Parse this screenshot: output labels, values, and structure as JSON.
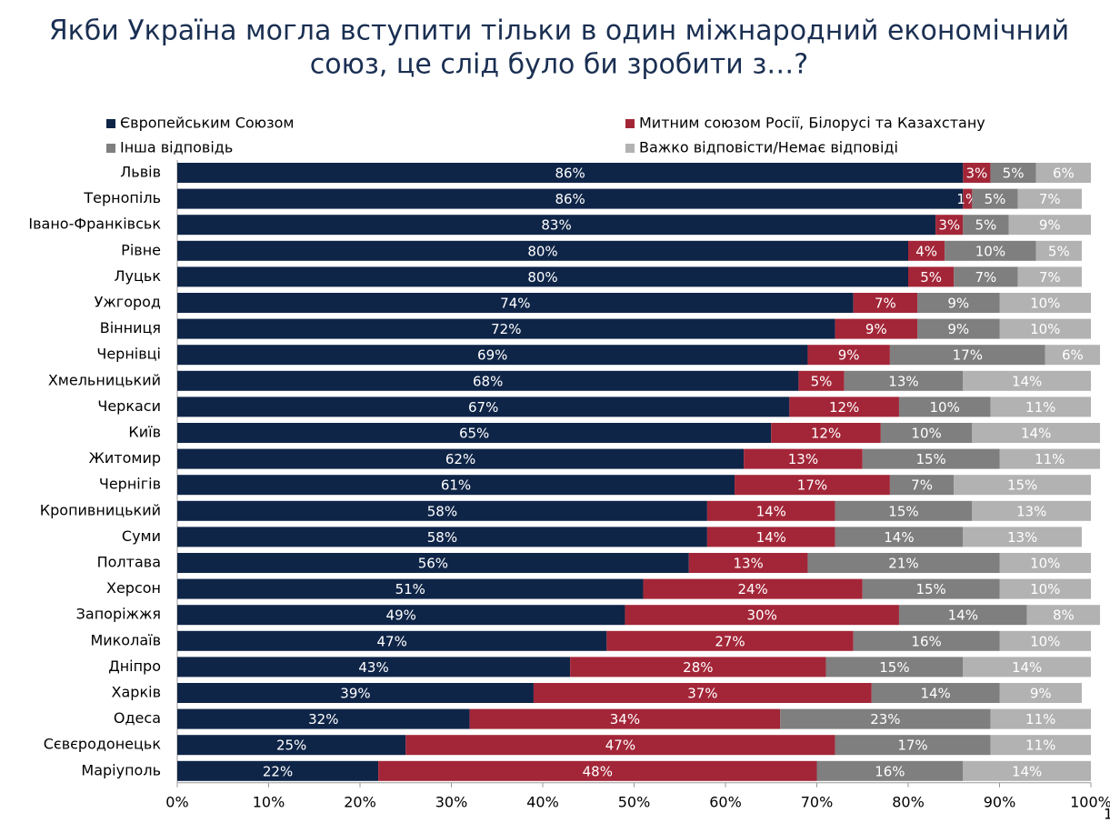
{
  "chart_data": {
    "type": "stacked-bar-horizontal",
    "title": "Якби Україна могла вступити тільки в один міжнародний економічний",
    "subtitle": "союз, це слід було би зробити з…?",
    "page_number": "1",
    "categories": [
      "Львів",
      "Тернопіль",
      "Івано-Франківськ",
      "Рівне",
      "Луцьк",
      "Ужгород",
      "Вінниця",
      "Чернівці",
      "Хмельницький",
      "Черкаси",
      "Київ",
      "Житомир",
      "Чернігів",
      "Кропивницький",
      "Суми",
      "Полтава",
      "Херсон",
      "Запоріжжя",
      "Миколаїв",
      "Дніпро",
      "Харків",
      "Одеса",
      "Сєвєродонецьк",
      "Маріуполь"
    ],
    "series": [
      {
        "name": "Європейським Союзом",
        "color": "#0f2548",
        "values": [
          86,
          86,
          83,
          80,
          80,
          74,
          72,
          69,
          68,
          67,
          65,
          62,
          61,
          58,
          58,
          56,
          51,
          49,
          47,
          43,
          39,
          32,
          25,
          22
        ],
        "value_labels": [
          "86%",
          "86%",
          "83%",
          "80%",
          "80%",
          "74%",
          "72%",
          "69%",
          "68%",
          "67%",
          "65%",
          "62%",
          "61%",
          "58%",
          "58%",
          "56%",
          "51%",
          "49%",
          "47%",
          "43%",
          "39%",
          "32%",
          "25%",
          "22%"
        ]
      },
      {
        "name": "Митним союзом Росії, Білорусі та Казахстану",
        "color": "#a32638",
        "values": [
          3,
          1,
          3,
          4,
          5,
          7,
          9,
          9,
          5,
          12,
          12,
          13,
          17,
          14,
          14,
          13,
          24,
          30,
          27,
          28,
          37,
          34,
          47,
          48
        ],
        "value_labels": [
          "3%",
          "1%",
          "3%",
          "4%",
          "5%",
          "7%",
          "9%",
          "9%",
          "5%",
          "12%",
          "12%",
          "13%",
          "17%",
          "14%",
          "14%",
          "13%",
          "24%",
          "30%",
          "27%",
          "28%",
          "37%",
          "34%",
          "47%",
          "48%"
        ]
      },
      {
        "name": "Інша відповідь",
        "color": "#7f7f7f",
        "values": [
          5,
          5,
          5,
          10,
          7,
          9,
          9,
          17,
          13,
          10,
          10,
          15,
          7,
          15,
          14,
          21,
          15,
          14,
          16,
          15,
          14,
          23,
          17,
          16
        ],
        "value_labels": [
          "5%",
          "5%",
          "5%",
          "10%",
          "7%",
          "9%",
          "9%",
          "17%",
          "13%",
          "10%",
          "10%",
          "15%",
          "7%",
          "15%",
          "14%",
          "21%",
          "15%",
          "14%",
          "16%",
          "15%",
          "14%",
          "23%",
          "17%",
          "16%"
        ]
      },
      {
        "name": "Важко відповісти/Немає відповіді",
        "color": "#b2b2b2",
        "values": [
          6,
          7,
          9,
          5,
          7,
          10,
          10,
          6,
          14,
          11,
          14,
          11,
          15,
          13,
          13,
          10,
          10,
          8,
          10,
          14,
          9,
          11,
          11,
          14
        ],
        "value_labels": [
          "6%",
          "7%",
          "9%",
          "5%",
          "7%",
          "10%",
          "10%",
          "6%",
          "14%",
          "11%",
          "14%",
          "11%",
          "15%",
          "13%",
          "13%",
          "10%",
          "10%",
          "8%",
          "10%",
          "14%",
          "9%",
          "11%",
          "11%",
          "14%"
        ]
      }
    ],
    "xlim": [
      0,
      100
    ],
    "xticks": [
      {
        "value": 0,
        "label": "0%"
      },
      {
        "value": 10,
        "label": "10%"
      },
      {
        "value": 20,
        "label": "20%"
      },
      {
        "value": 30,
        "label": "30%"
      },
      {
        "value": 40,
        "label": "40%"
      },
      {
        "value": 50,
        "label": "50%"
      },
      {
        "value": 60,
        "label": "60%"
      },
      {
        "value": 70,
        "label": "70%"
      },
      {
        "value": 80,
        "label": "80%"
      },
      {
        "value": 90,
        "label": "90%"
      },
      {
        "value": 100,
        "label": "100%"
      }
    ]
  }
}
